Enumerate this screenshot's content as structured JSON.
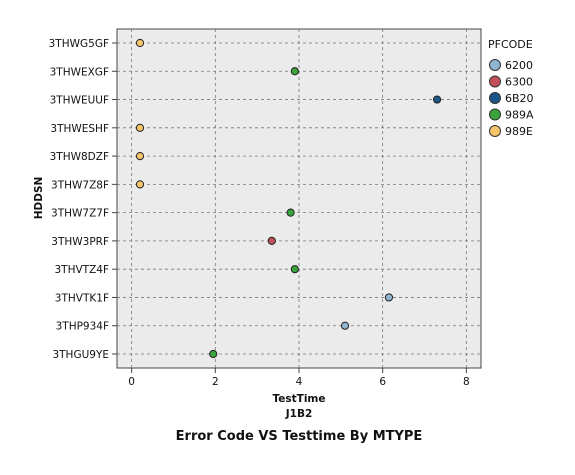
{
  "chart_data": {
    "type": "scatter",
    "title": "Error Code VS Testtime By MTYPE",
    "xlabel": "TestTime",
    "xlabel_sub": "J1B2",
    "ylabel": "HDDSN",
    "xlim": [
      -0.35,
      8.35
    ],
    "xticks": [
      0,
      2,
      4,
      6,
      8
    ],
    "categories": [
      "3THWG5GF",
      "3THWEXGF",
      "3THWEUUF",
      "3THWESHF",
      "3THW8DZF",
      "3THW7Z8F",
      "3THW7Z7F",
      "3THW3PRF",
      "3THVTZ4F",
      "3THVTK1F",
      "3THP934F",
      "3THGU9YE"
    ],
    "grid": true,
    "legend": {
      "title": "PFCODE",
      "position": "right",
      "entries": [
        {
          "name": "6200",
          "color": "#8fb4d0"
        },
        {
          "name": "6300",
          "color": "#c4505a"
        },
        {
          "name": "6B20",
          "color": "#1c5688"
        },
        {
          "name": "989A",
          "color": "#3aa33a"
        },
        {
          "name": "989E",
          "color": "#f6c56a"
        }
      ]
    },
    "points": [
      {
        "category": "3THWG5GF",
        "x": 0.2,
        "series": "989E"
      },
      {
        "category": "3THWEXGF",
        "x": 3.9,
        "series": "989A"
      },
      {
        "category": "3THWEUUF",
        "x": 7.3,
        "series": "6B20"
      },
      {
        "category": "3THWESHF",
        "x": 0.2,
        "series": "989E"
      },
      {
        "category": "3THW8DZF",
        "x": 0.2,
        "series": "989E"
      },
      {
        "category": "3THW7Z8F",
        "x": 0.2,
        "series": "989E"
      },
      {
        "category": "3THW7Z7F",
        "x": 3.8,
        "series": "989A"
      },
      {
        "category": "3THW3PRF",
        "x": 3.35,
        "series": "6300"
      },
      {
        "category": "3THVTZ4F",
        "x": 3.9,
        "series": "989A"
      },
      {
        "category": "3THVTK1F",
        "x": 6.15,
        "series": "6200"
      },
      {
        "category": "3THP934F",
        "x": 5.1,
        "series": "6200"
      },
      {
        "category": "3THGU9YE",
        "x": 1.95,
        "series": "989A"
      }
    ]
  }
}
